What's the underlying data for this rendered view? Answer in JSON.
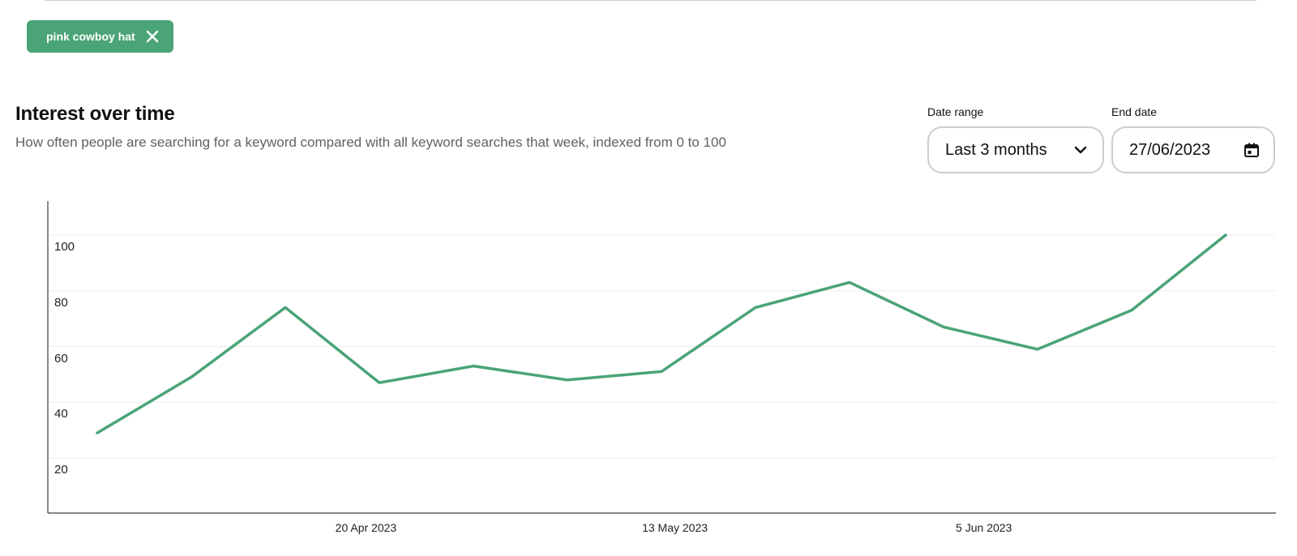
{
  "filter_chip": {
    "label": "pink cowboy hat",
    "icon": "close-icon"
  },
  "section": {
    "title": "Interest over time",
    "subtitle": "How often people are searching for a keyword compared with all keyword searches that week, indexed from 0 to 100"
  },
  "controls": {
    "date_range": {
      "label": "Date range",
      "value": "Last 3 months",
      "icon": "chevron-down-icon"
    },
    "end_date": {
      "label": "End date",
      "value": "27/06/2023",
      "icon": "calendar-icon"
    }
  },
  "colors": {
    "accent": "#4aa477",
    "grid": "#ececec",
    "axis": "#111111"
  },
  "chart_data": {
    "type": "line",
    "title": "",
    "xlabel": "",
    "ylabel": "",
    "x": [
      "2023-03-31",
      "2023-04-07",
      "2023-04-14",
      "2023-04-21",
      "2023-04-28",
      "2023-05-05",
      "2023-05-12",
      "2023-05-19",
      "2023-05-26",
      "2023-06-02",
      "2023-06-09",
      "2023-06-16",
      "2023-06-23"
    ],
    "values": [
      29,
      49,
      74,
      47,
      53,
      48,
      51,
      74,
      83,
      67,
      59,
      73,
      100
    ],
    "ylim": [
      0,
      110
    ],
    "y_ticks": [
      20,
      40,
      60,
      80,
      100
    ],
    "x_tick_labels": [
      {
        "label": "20 Apr 2023",
        "x": "2023-04-20"
      },
      {
        "label": "13 May 2023",
        "x": "2023-05-13"
      },
      {
        "label": "5 Jun 2023",
        "x": "2023-06-05"
      }
    ],
    "grid": true,
    "legend": "none"
  }
}
